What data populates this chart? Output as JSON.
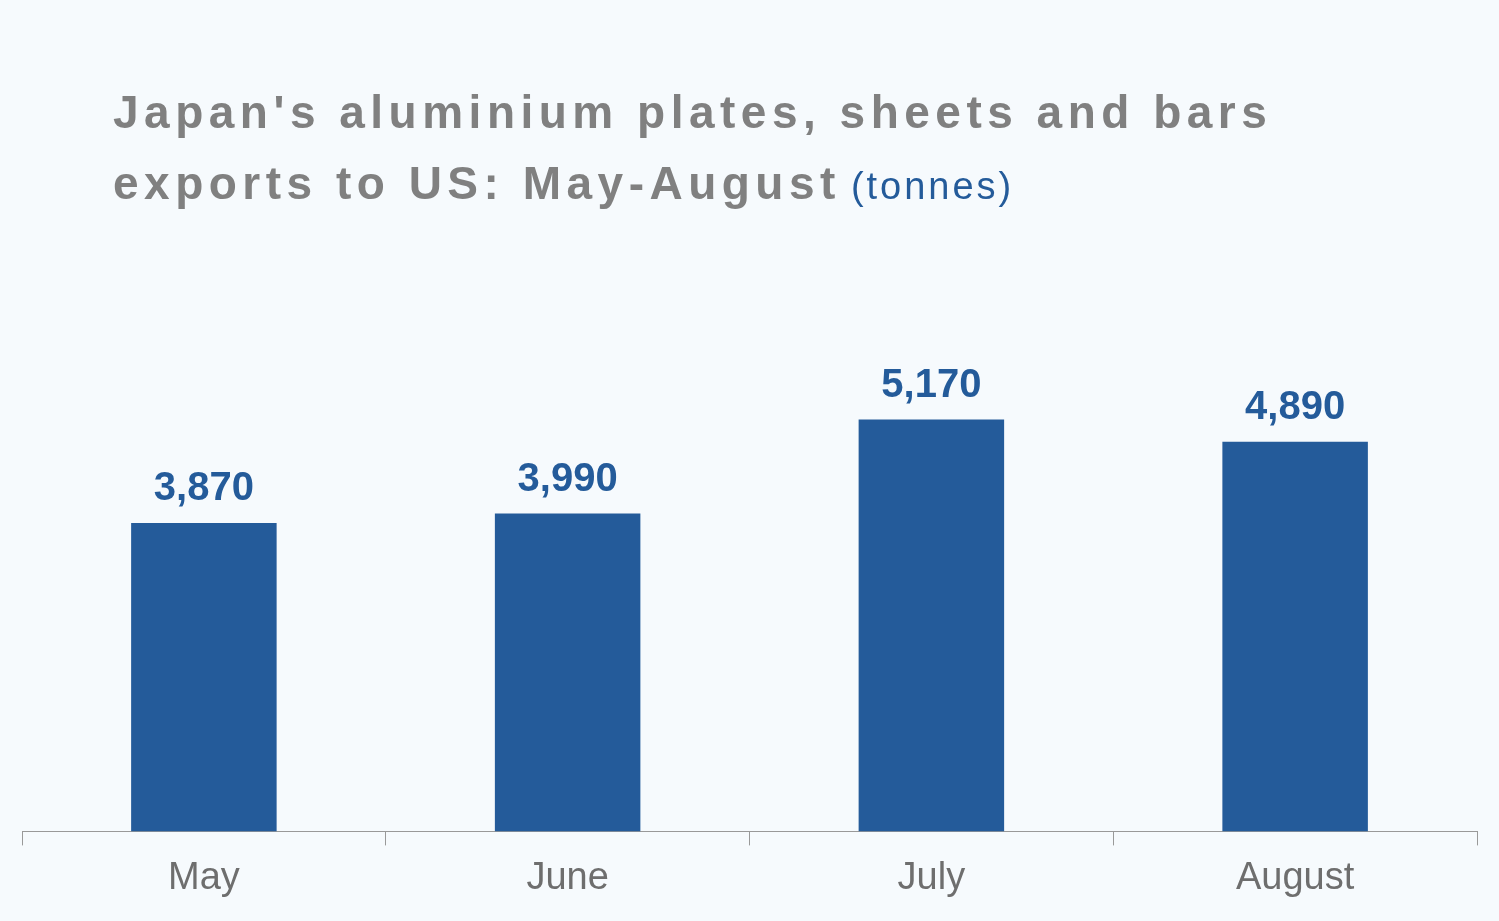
{
  "chart_data": {
    "type": "bar",
    "title": "Japan's aluminium plates, sheets and bars exports to US: May-August",
    "subtitle": "(tonnes)",
    "categories": [
      "May",
      "June",
      "July",
      "August"
    ],
    "values": [
      3870,
      3990,
      5170,
      4890
    ],
    "value_labels": [
      "3,870",
      "3,990",
      "5,170",
      "4,890"
    ],
    "color": "#245b9a",
    "grid": false,
    "legend": false
  }
}
